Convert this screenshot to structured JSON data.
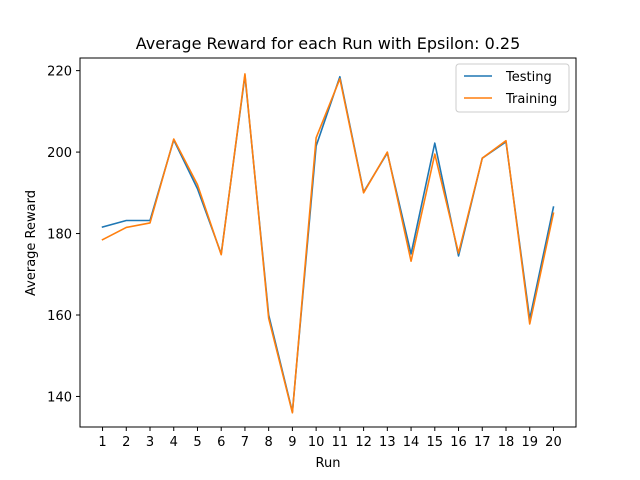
{
  "chart_data": {
    "type": "line",
    "title": "Average Reward for each Run with Epsilon: 0.25",
    "xlabel": "Run",
    "ylabel": "Average Reward",
    "x": [
      1,
      2,
      3,
      4,
      5,
      6,
      7,
      8,
      9,
      10,
      11,
      12,
      13,
      14,
      15,
      16,
      17,
      18,
      19,
      20
    ],
    "xlim": [
      0.05,
      20.95
    ],
    "ylim": [
      132.5,
      223.1
    ],
    "yticks": [
      140,
      160,
      180,
      200,
      220
    ],
    "grid": false,
    "legend_position": "top-right",
    "series": [
      {
        "name": "Testing",
        "color": "#1f77b4",
        "values": [
          181.6,
          183.2,
          183.2,
          203.0,
          191.0,
          175.0,
          218.8,
          160.0,
          136.2,
          201.5,
          218.5,
          190.2,
          199.8,
          175.0,
          202.2,
          174.5,
          198.5,
          202.5,
          159.0,
          186.5
        ]
      },
      {
        "name": "Training",
        "color": "#ff7f0e",
        "values": [
          178.5,
          181.5,
          182.6,
          203.2,
          192.0,
          174.8,
          219.2,
          159.2,
          136.0,
          203.5,
          218.0,
          190.0,
          200.0,
          173.2,
          199.5,
          175.2,
          198.5,
          202.8,
          157.8,
          185.0
        ]
      }
    ]
  }
}
